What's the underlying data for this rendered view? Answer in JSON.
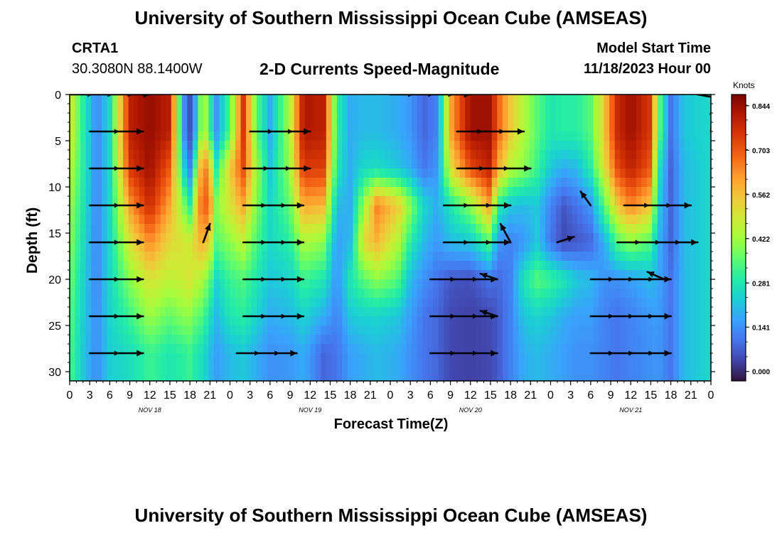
{
  "header": {
    "title_top": "University of Southern Mississippi Ocean Cube (AMSEAS)",
    "title_bottom": "University of Southern Mississippi Ocean Cube (AMSEAS)",
    "station": "CRTA1",
    "coords": "30.3080N  88.1400W",
    "subtitle": "2-D Currents Speed-Magnitude",
    "model_start_label": "Model Start Time",
    "model_start_value": "11/18/2023 Hour 00"
  },
  "colors": {
    "scale": [
      "#30123b",
      "#4145ab",
      "#4675ed",
      "#39a2fc",
      "#1bcfd4",
      "#24eca6",
      "#61fc6c",
      "#a4fc3b",
      "#d1e834",
      "#f3c63a",
      "#fe9b2d",
      "#f36315",
      "#d93806",
      "#b11901",
      "#7a0402"
    ]
  },
  "chart_data": {
    "type": "heatmap",
    "title": "2-D Currents Speed-Magnitude",
    "xlabel": "Forecast Time(Z)",
    "ylabel": "Depth (ft)",
    "x_range_hours": [
      0,
      96
    ],
    "ylim": [
      0,
      31
    ],
    "y_ticks": [
      0,
      5,
      10,
      15,
      20,
      25,
      30
    ],
    "x_tick_labels": [
      "0",
      "3",
      "6",
      "9",
      "12",
      "15",
      "18",
      "21",
      "0",
      "3",
      "6",
      "9",
      "12",
      "15",
      "18",
      "21",
      "0",
      "3",
      "6",
      "9",
      "12",
      "15",
      "18",
      "21",
      "0",
      "3",
      "6",
      "9",
      "12",
      "15",
      "18",
      "21",
      "0"
    ],
    "date_labels": [
      {
        "hour": 12,
        "label": "NOV 18"
      },
      {
        "hour": 36,
        "label": "NOV 19"
      },
      {
        "hour": 60,
        "label": "NOV 20"
      },
      {
        "hour": 84,
        "label": "NOV 21"
      }
    ],
    "colorbar": {
      "unit": "Knots",
      "min": -0.03,
      "max": 0.88,
      "ticks": [
        "0.844",
        "0.703",
        "0.562",
        "0.422",
        "0.281",
        "0.141",
        "0.000"
      ],
      "tick_values": [
        0.844,
        0.703,
        0.562,
        0.422,
        0.281,
        0.141,
        0.0
      ]
    },
    "vector_depths": [
      4,
      8,
      12,
      16,
      20,
      24,
      28
    ],
    "speed_profiles": [
      {
        "t": 0,
        "v": [
          0.5,
          0.45,
          0.42,
          0.4,
          0.38,
          0.36,
          0.34
        ]
      },
      {
        "t": 2,
        "v": [
          0.3,
          0.3,
          0.28,
          0.26,
          0.24,
          0.23,
          0.22
        ]
      },
      {
        "t": 4,
        "v": [
          0.12,
          0.12,
          0.12,
          0.12,
          0.12,
          0.13,
          0.13
        ]
      },
      {
        "t": 6,
        "v": [
          0.25,
          0.25,
          0.25,
          0.25,
          0.25,
          0.24,
          0.23
        ]
      },
      {
        "t": 9,
        "v": [
          0.8,
          0.75,
          0.62,
          0.5,
          0.4,
          0.32,
          0.26
        ]
      },
      {
        "t": 12,
        "v": [
          0.85,
          0.84,
          0.78,
          0.64,
          0.5,
          0.42,
          0.32
        ]
      },
      {
        "t": 15,
        "v": [
          0.8,
          0.7,
          0.6,
          0.52,
          0.46,
          0.36,
          0.28
        ]
      },
      {
        "t": 17,
        "v": [
          0.15,
          0.25,
          0.4,
          0.5,
          0.48,
          0.4,
          0.3
        ]
      },
      {
        "t": 18,
        "v": [
          0.05,
          0.12,
          0.3,
          0.48,
          0.5,
          0.4,
          0.32
        ]
      },
      {
        "t": 19,
        "v": [
          0.2,
          0.4,
          0.55,
          0.55,
          0.46,
          0.36,
          0.28
        ]
      },
      {
        "t": 20,
        "v": [
          0.5,
          0.7,
          0.72,
          0.6,
          0.44,
          0.34,
          0.26
        ]
      },
      {
        "t": 21,
        "v": [
          0.3,
          0.55,
          0.65,
          0.52,
          0.35,
          0.26,
          0.2
        ]
      },
      {
        "t": 22,
        "v": [
          0.15,
          0.3,
          0.4,
          0.35,
          0.25,
          0.2,
          0.16
        ]
      },
      {
        "t": 24,
        "v": [
          0.35,
          0.55,
          0.5,
          0.4,
          0.32,
          0.28,
          0.2
        ]
      },
      {
        "t": 26,
        "v": [
          0.75,
          0.72,
          0.6,
          0.46,
          0.34,
          0.3,
          0.22
        ]
      },
      {
        "t": 28,
        "v": [
          0.35,
          0.42,
          0.38,
          0.33,
          0.28,
          0.24,
          0.18
        ]
      },
      {
        "t": 30,
        "v": [
          0.18,
          0.22,
          0.25,
          0.25,
          0.22,
          0.18,
          0.14
        ]
      },
      {
        "t": 33,
        "v": [
          0.45,
          0.42,
          0.36,
          0.3,
          0.24,
          0.2,
          0.15
        ]
      },
      {
        "t": 35,
        "v": [
          0.82,
          0.75,
          0.6,
          0.44,
          0.32,
          0.24,
          0.18
        ]
      },
      {
        "t": 38,
        "v": [
          0.8,
          0.74,
          0.58,
          0.4,
          0.28,
          0.18,
          0.08
        ]
      },
      {
        "t": 40,
        "v": [
          0.3,
          0.28,
          0.2,
          0.16,
          0.14,
          0.12,
          0.1
        ]
      },
      {
        "t": 42,
        "v": [
          0.18,
          0.18,
          0.18,
          0.2,
          0.28,
          0.22,
          0.16
        ]
      },
      {
        "t": 44,
        "v": [
          0.2,
          0.25,
          0.42,
          0.52,
          0.35,
          0.24,
          0.18
        ]
      },
      {
        "t": 46,
        "v": [
          0.2,
          0.26,
          0.65,
          0.58,
          0.4,
          0.24,
          0.2
        ]
      },
      {
        "t": 49,
        "v": [
          0.18,
          0.22,
          0.55,
          0.45,
          0.35,
          0.22,
          0.18
        ]
      },
      {
        "t": 51,
        "v": [
          0.15,
          0.18,
          0.4,
          0.3,
          0.2,
          0.16,
          0.14
        ]
      },
      {
        "t": 53,
        "v": [
          0.08,
          0.1,
          0.25,
          0.2,
          0.14,
          0.1,
          0.1
        ]
      },
      {
        "t": 55,
        "v": [
          0.12,
          0.15,
          0.18,
          0.15,
          0.1,
          0.08,
          0.08
        ]
      },
      {
        "t": 57,
        "v": [
          0.6,
          0.5,
          0.28,
          0.2,
          0.06,
          0.04,
          0.04
        ]
      },
      {
        "t": 60,
        "v": [
          0.84,
          0.72,
          0.4,
          0.22,
          0.05,
          0.03,
          0.03
        ]
      },
      {
        "t": 63,
        "v": [
          0.84,
          0.8,
          0.62,
          0.35,
          0.1,
          0.04,
          0.04
        ]
      },
      {
        "t": 64,
        "v": [
          0.7,
          0.6,
          0.3,
          0.15,
          0.08,
          0.06,
          0.06
        ]
      },
      {
        "t": 66,
        "v": [
          0.55,
          0.45,
          0.22,
          0.12,
          0.12,
          0.12,
          0.12
        ]
      },
      {
        "t": 68,
        "v": [
          0.44,
          0.4,
          0.2,
          0.15,
          0.28,
          0.22,
          0.18
        ]
      },
      {
        "t": 70,
        "v": [
          0.35,
          0.32,
          0.22,
          0.22,
          0.35,
          0.24,
          0.2
        ]
      },
      {
        "t": 72,
        "v": [
          0.28,
          0.22,
          0.12,
          0.1,
          0.32,
          0.22,
          0.18
        ]
      },
      {
        "t": 74,
        "v": [
          0.3,
          0.18,
          0.06,
          0.04,
          0.28,
          0.18,
          0.16
        ]
      },
      {
        "t": 76,
        "v": [
          0.3,
          0.2,
          0.1,
          0.06,
          0.22,
          0.16,
          0.14
        ]
      },
      {
        "t": 78,
        "v": [
          0.35,
          0.3,
          0.15,
          0.08,
          0.2,
          0.16,
          0.14
        ]
      },
      {
        "t": 80,
        "v": [
          0.55,
          0.5,
          0.35,
          0.18,
          0.14,
          0.12,
          0.12
        ]
      },
      {
        "t": 82,
        "v": [
          0.78,
          0.72,
          0.55,
          0.34,
          0.14,
          0.1,
          0.1
        ]
      },
      {
        "t": 84,
        "v": [
          0.84,
          0.8,
          0.65,
          0.4,
          0.16,
          0.12,
          0.12
        ]
      },
      {
        "t": 87,
        "v": [
          0.75,
          0.7,
          0.55,
          0.34,
          0.2,
          0.15,
          0.14
        ]
      },
      {
        "t": 88,
        "v": [
          0.4,
          0.3,
          0.25,
          0.2,
          0.18,
          0.16,
          0.15
        ]
      },
      {
        "t": 90,
        "v": [
          0.1,
          0.08,
          0.08,
          0.08,
          0.1,
          0.1,
          0.1
        ]
      },
      {
        "t": 92,
        "v": [
          0.22,
          0.2,
          0.2,
          0.2,
          0.2,
          0.2,
          0.2
        ]
      },
      {
        "t": 96,
        "v": [
          0.25,
          0.25,
          0.25,
          0.25,
          0.25,
          0.25,
          0.25
        ]
      }
    ],
    "vectors": [
      {
        "t": 0,
        "d": 0,
        "dx": 12,
        "dy": 0
      },
      {
        "t": 48,
        "d": 0,
        "dx": 12,
        "dy": 0
      },
      {
        "t": 94,
        "d": 0,
        "dx": 4,
        "dy": 0.5
      },
      {
        "t": 3,
        "d": 4,
        "dx": 8,
        "dy": 0
      },
      {
        "t": 27,
        "d": 4,
        "dx": 9,
        "dy": 0
      },
      {
        "t": 58,
        "d": 4,
        "dx": 10,
        "dy": 0
      },
      {
        "t": 96,
        "d": 4,
        "dx": 0.3,
        "dy": -2.5
      },
      {
        "t": 3,
        "d": 8,
        "dx": 8,
        "dy": 0
      },
      {
        "t": 26,
        "d": 8,
        "dx": 10,
        "dy": 0
      },
      {
        "t": 58,
        "d": 8,
        "dx": 11,
        "dy": 0
      },
      {
        "t": 3,
        "d": 12,
        "dx": 8,
        "dy": 0
      },
      {
        "t": 26,
        "d": 12,
        "dx": 9,
        "dy": 0
      },
      {
        "t": 56,
        "d": 12,
        "dx": 10,
        "dy": 0
      },
      {
        "t": 78,
        "d": 12,
        "dx": -1.5,
        "dy": -1.5
      },
      {
        "t": 83,
        "d": 12,
        "dx": 10,
        "dy": 0
      },
      {
        "t": 20,
        "d": 16,
        "dx": 1,
        "dy": -2
      },
      {
        "t": 3,
        "d": 16,
        "dx": 8,
        "dy": 0
      },
      {
        "t": 26,
        "d": 16,
        "dx": 9,
        "dy": 0
      },
      {
        "t": 56,
        "d": 16,
        "dx": 10,
        "dy": 0
      },
      {
        "t": 66,
        "d": 16,
        "dx": -1.5,
        "dy": -2
      },
      {
        "t": 73,
        "d": 16,
        "dx": 2.5,
        "dy": -0.6
      },
      {
        "t": 82,
        "d": 16,
        "dx": 12,
        "dy": 0
      },
      {
        "t": 3,
        "d": 20,
        "dx": 8,
        "dy": 0
      },
      {
        "t": 26,
        "d": 20,
        "dx": 9,
        "dy": 0
      },
      {
        "t": 54,
        "d": 20,
        "dx": 10,
        "dy": 0
      },
      {
        "t": 64,
        "d": 20,
        "dx": -2.5,
        "dy": -0.6
      },
      {
        "t": 78,
        "d": 20,
        "dx": 12,
        "dy": 0
      },
      {
        "t": 89,
        "d": 20,
        "dx": -2.5,
        "dy": -0.8
      },
      {
        "t": 96,
        "d": 20,
        "dx": 3,
        "dy": 0
      },
      {
        "t": 3,
        "d": 24,
        "dx": 8,
        "dy": 0
      },
      {
        "t": 26,
        "d": 24,
        "dx": 9,
        "dy": 0
      },
      {
        "t": 54,
        "d": 24,
        "dx": 10,
        "dy": 0
      },
      {
        "t": 64,
        "d": 24,
        "dx": -2.5,
        "dy": -0.6
      },
      {
        "t": 78,
        "d": 24,
        "dx": 12,
        "dy": 0
      },
      {
        "t": 96,
        "d": 24,
        "dx": 3,
        "dy": 0
      },
      {
        "t": 3,
        "d": 28,
        "dx": 8,
        "dy": 0
      },
      {
        "t": 25,
        "d": 28,
        "dx": 9,
        "dy": 0
      },
      {
        "t": 54,
        "d": 28,
        "dx": 10,
        "dy": 0
      },
      {
        "t": 78,
        "d": 28,
        "dx": 12,
        "dy": 0
      },
      {
        "t": 96,
        "d": 28,
        "dx": 3,
        "dy": 0
      }
    ]
  }
}
